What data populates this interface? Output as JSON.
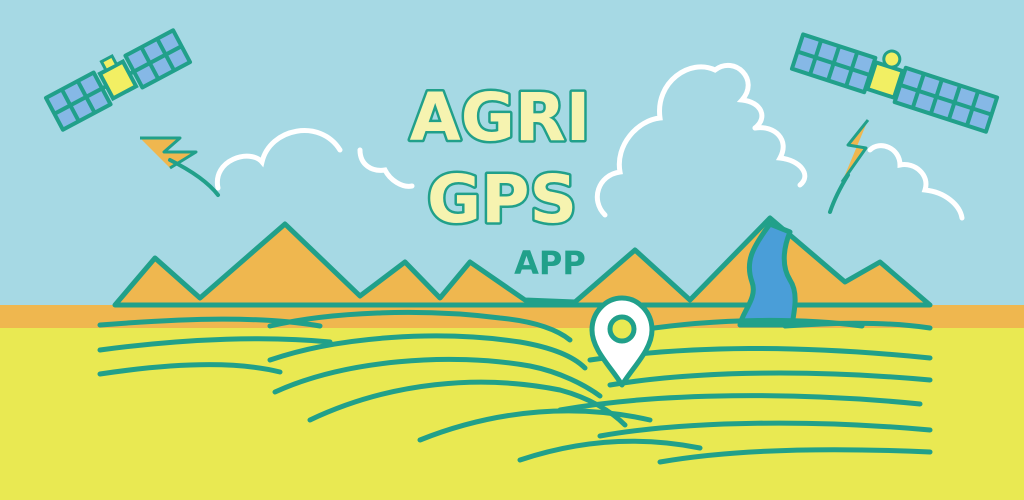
{
  "banner": {
    "title_line1": "AGRI",
    "title_line2": "GPS",
    "subtitle": "APP"
  },
  "colors": {
    "sky": "#a6d9e4",
    "outline": "#21a08a",
    "mountain": "#efb74f",
    "field": "#e9e952",
    "river": "#4a9ed8",
    "title_fill": "#f6f3b0",
    "satellite_body": "#f2ef63",
    "solar_panel": "#86b8e6",
    "cloud": "#ffffff"
  },
  "icons": [
    "satellite-icon",
    "lightning-icon",
    "cloud-icon",
    "map-pin-icon",
    "river-icon"
  ]
}
